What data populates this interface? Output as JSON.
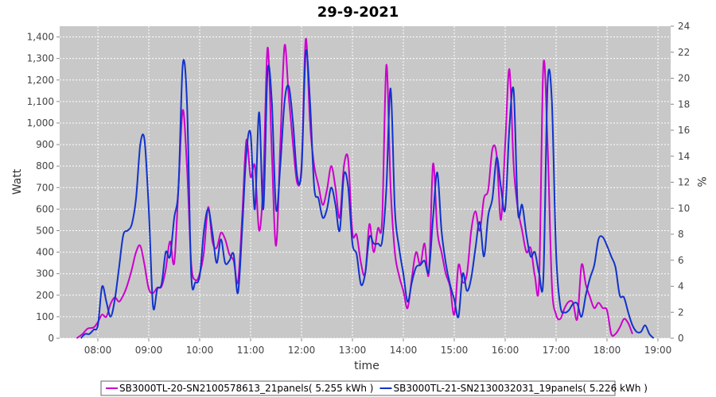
{
  "chart_data": {
    "type": "line",
    "title": "29-9-2021",
    "xlabel": "time",
    "ylabel": "Watt",
    "y2label": "%",
    "xlim": [
      "07:15",
      "19:15"
    ],
    "ylim": [
      0,
      1450
    ],
    "y2lim": [
      0,
      24
    ],
    "x_ticks": [
      "08:00",
      "09:00",
      "10:00",
      "11:00",
      "12:00",
      "13:00",
      "14:00",
      "15:00",
      "16:00",
      "17:00",
      "18:00",
      "19:00"
    ],
    "y_ticks": [
      "0",
      "100",
      "200",
      "300",
      "400",
      "500",
      "600",
      "700",
      "800",
      "900",
      "1,000",
      "1,100",
      "1,200",
      "1,300",
      "1,400"
    ],
    "y2_ticks": [
      "0",
      "2",
      "4",
      "6",
      "8",
      "10",
      "12",
      "14",
      "16",
      "18",
      "20",
      "22",
      "24"
    ],
    "grid": true,
    "legend_position": "bottom",
    "series": [
      {
        "name": "SB3000TL-20-SN2100578613_21panels( 5.255 kWh )",
        "color": "#cc00cc",
        "points": [
          [
            "07:35",
            0
          ],
          [
            "07:42",
            20
          ],
          [
            "07:48",
            45
          ],
          [
            "07:55",
            50
          ],
          [
            "08:00",
            75
          ],
          [
            "08:05",
            110
          ],
          [
            "08:10",
            100
          ],
          [
            "08:15",
            160
          ],
          [
            "08:20",
            190
          ],
          [
            "08:25",
            170
          ],
          [
            "08:30",
            200
          ],
          [
            "08:35",
            250
          ],
          [
            "08:40",
            320
          ],
          [
            "08:45",
            400
          ],
          [
            "08:50",
            430
          ],
          [
            "08:55",
            340
          ],
          [
            "09:00",
            230
          ],
          [
            "09:05",
            210
          ],
          [
            "09:10",
            235
          ],
          [
            "09:15",
            240
          ],
          [
            "09:20",
            320
          ],
          [
            "09:25",
            450
          ],
          [
            "09:30",
            350
          ],
          [
            "09:35",
            700
          ],
          [
            "09:40",
            1060
          ],
          [
            "09:45",
            800
          ],
          [
            "09:50",
            350
          ],
          [
            "09:55",
            270
          ],
          [
            "10:00",
            300
          ],
          [
            "10:05",
            400
          ],
          [
            "10:10",
            610
          ],
          [
            "10:15",
            450
          ],
          [
            "10:20",
            420
          ],
          [
            "10:25",
            490
          ],
          [
            "10:30",
            460
          ],
          [
            "10:35",
            390
          ],
          [
            "10:40",
            360
          ],
          [
            "10:45",
            260
          ],
          [
            "10:50",
            560
          ],
          [
            "10:55",
            920
          ],
          [
            "11:00",
            750
          ],
          [
            "11:05",
            800
          ],
          [
            "11:10",
            500
          ],
          [
            "11:15",
            730
          ],
          [
            "11:20",
            1350
          ],
          [
            "11:25",
            860
          ],
          [
            "11:30",
            430
          ],
          [
            "11:35",
            900
          ],
          [
            "11:40",
            1360
          ],
          [
            "11:45",
            1120
          ],
          [
            "11:50",
            900
          ],
          [
            "11:55",
            720
          ],
          [
            "12:00",
            800
          ],
          [
            "12:05",
            1390
          ],
          [
            "12:10",
            1000
          ],
          [
            "12:15",
            800
          ],
          [
            "12:20",
            710
          ],
          [
            "12:25",
            620
          ],
          [
            "12:30",
            690
          ],
          [
            "12:35",
            800
          ],
          [
            "12:40",
            700
          ],
          [
            "12:45",
            560
          ],
          [
            "12:50",
            800
          ],
          [
            "12:55",
            830
          ],
          [
            "13:00",
            490
          ],
          [
            "13:05",
            480
          ],
          [
            "13:10",
            350
          ],
          [
            "13:15",
            300
          ],
          [
            "13:20",
            530
          ],
          [
            "13:25",
            400
          ],
          [
            "13:30",
            510
          ],
          [
            "13:35",
            550
          ],
          [
            "13:40",
            1270
          ],
          [
            "13:45",
            700
          ],
          [
            "13:50",
            400
          ],
          [
            "13:55",
            290
          ],
          [
            "14:00",
            220
          ],
          [
            "14:05",
            140
          ],
          [
            "14:10",
            280
          ],
          [
            "14:15",
            400
          ],
          [
            "14:20",
            340
          ],
          [
            "14:25",
            440
          ],
          [
            "14:30",
            300
          ],
          [
            "14:35",
            810
          ],
          [
            "14:40",
            500
          ],
          [
            "14:45",
            400
          ],
          [
            "14:50",
            300
          ],
          [
            "14:55",
            240
          ],
          [
            "15:00",
            110
          ],
          [
            "15:05",
            340
          ],
          [
            "15:10",
            260
          ],
          [
            "15:15",
            300
          ],
          [
            "15:20",
            500
          ],
          [
            "15:25",
            590
          ],
          [
            "15:30",
            500
          ],
          [
            "15:35",
            650
          ],
          [
            "15:40",
            690
          ],
          [
            "15:45",
            880
          ],
          [
            "15:50",
            850
          ],
          [
            "15:55",
            550
          ],
          [
            "16:00",
            900
          ],
          [
            "16:05",
            1250
          ],
          [
            "16:10",
            800
          ],
          [
            "16:15",
            600
          ],
          [
            "16:20",
            500
          ],
          [
            "16:25",
            400
          ],
          [
            "16:30",
            420
          ],
          [
            "16:35",
            290
          ],
          [
            "16:40",
            270
          ],
          [
            "16:45",
            1270
          ],
          [
            "16:50",
            900
          ],
          [
            "16:55",
            250
          ],
          [
            "17:00",
            110
          ],
          [
            "17:05",
            90
          ],
          [
            "17:10",
            140
          ],
          [
            "17:15",
            170
          ],
          [
            "17:20",
            165
          ],
          [
            "17:25",
            90
          ],
          [
            "17:30",
            340
          ],
          [
            "17:35",
            250
          ],
          [
            "17:40",
            190
          ],
          [
            "17:45",
            140
          ],
          [
            "17:50",
            165
          ],
          [
            "17:55",
            140
          ],
          [
            "18:00",
            130
          ],
          [
            "18:05",
            20
          ],
          [
            "18:10",
            20
          ],
          [
            "18:15",
            50
          ],
          [
            "18:20",
            90
          ],
          [
            "18:25",
            70
          ],
          [
            "18:30",
            20
          ]
        ]
      },
      {
        "name": "SB3000TL-21-SN2130032031_19panels( 5.226 kWh )",
        "color": "#1133cc",
        "points": [
          [
            "07:40",
            0
          ],
          [
            "07:45",
            20
          ],
          [
            "07:50",
            20
          ],
          [
            "07:55",
            40
          ],
          [
            "08:00",
            60
          ],
          [
            "08:05",
            240
          ],
          [
            "08:10",
            170
          ],
          [
            "08:15",
            100
          ],
          [
            "08:20",
            180
          ],
          [
            "08:25",
            330
          ],
          [
            "08:30",
            480
          ],
          [
            "08:35",
            500
          ],
          [
            "08:40",
            530
          ],
          [
            "08:45",
            650
          ],
          [
            "08:50",
            900
          ],
          [
            "08:55",
            920
          ],
          [
            "09:00",
            600
          ],
          [
            "09:05",
            150
          ],
          [
            "09:10",
            230
          ],
          [
            "09:15",
            250
          ],
          [
            "09:20",
            400
          ],
          [
            "09:25",
            380
          ],
          [
            "09:30",
            560
          ],
          [
            "09:35",
            700
          ],
          [
            "09:40",
            1270
          ],
          [
            "09:45",
            1100
          ],
          [
            "09:50",
            300
          ],
          [
            "09:55",
            260
          ],
          [
            "10:00",
            290
          ],
          [
            "10:05",
            500
          ],
          [
            "10:10",
            600
          ],
          [
            "10:15",
            490
          ],
          [
            "10:20",
            350
          ],
          [
            "10:25",
            460
          ],
          [
            "10:30",
            350
          ],
          [
            "10:35",
            360
          ],
          [
            "10:40",
            390
          ],
          [
            "10:45",
            210
          ],
          [
            "10:50",
            500
          ],
          [
            "10:55",
            860
          ],
          [
            "11:00",
            950
          ],
          [
            "11:05",
            600
          ],
          [
            "11:10",
            1050
          ],
          [
            "11:15",
            600
          ],
          [
            "11:20",
            1240
          ],
          [
            "11:25",
            1100
          ],
          [
            "11:30",
            600
          ],
          [
            "11:35",
            800
          ],
          [
            "11:40",
            1100
          ],
          [
            "11:45",
            1170
          ],
          [
            "11:50",
            1000
          ],
          [
            "11:55",
            750
          ],
          [
            "12:00",
            780
          ],
          [
            "12:05",
            1330
          ],
          [
            "12:10",
            1100
          ],
          [
            "12:15",
            700
          ],
          [
            "12:20",
            650
          ],
          [
            "12:25",
            560
          ],
          [
            "12:30",
            600
          ],
          [
            "12:35",
            700
          ],
          [
            "12:40",
            620
          ],
          [
            "12:45",
            500
          ],
          [
            "12:50",
            760
          ],
          [
            "12:55",
            700
          ],
          [
            "13:00",
            440
          ],
          [
            "13:05",
            390
          ],
          [
            "13:10",
            250
          ],
          [
            "13:15",
            300
          ],
          [
            "13:20",
            470
          ],
          [
            "13:25",
            440
          ],
          [
            "13:30",
            440
          ],
          [
            "13:35",
            450
          ],
          [
            "13:40",
            700
          ],
          [
            "13:45",
            1160
          ],
          [
            "13:50",
            600
          ],
          [
            "13:55",
            420
          ],
          [
            "14:00",
            300
          ],
          [
            "14:05",
            170
          ],
          [
            "14:10",
            260
          ],
          [
            "14:15",
            330
          ],
          [
            "14:20",
            340
          ],
          [
            "14:25",
            360
          ],
          [
            "14:30",
            310
          ],
          [
            "14:35",
            560
          ],
          [
            "14:40",
            770
          ],
          [
            "14:45",
            500
          ],
          [
            "14:50",
            350
          ],
          [
            "14:55",
            250
          ],
          [
            "15:00",
            180
          ],
          [
            "15:05",
            100
          ],
          [
            "15:10",
            300
          ],
          [
            "15:15",
            220
          ],
          [
            "15:20",
            280
          ],
          [
            "15:25",
            420
          ],
          [
            "15:30",
            540
          ],
          [
            "15:35",
            380
          ],
          [
            "15:40",
            570
          ],
          [
            "15:45",
            650
          ],
          [
            "15:50",
            840
          ],
          [
            "15:55",
            700
          ],
          [
            "16:00",
            600
          ],
          [
            "16:05",
            980
          ],
          [
            "16:10",
            1150
          ],
          [
            "16:15",
            590
          ],
          [
            "16:20",
            620
          ],
          [
            "16:25",
            480
          ],
          [
            "16:30",
            380
          ],
          [
            "16:35",
            400
          ],
          [
            "16:40",
            300
          ],
          [
            "16:45",
            280
          ],
          [
            "16:50",
            1180
          ],
          [
            "16:55",
            1100
          ],
          [
            "17:00",
            400
          ],
          [
            "17:05",
            150
          ],
          [
            "17:10",
            120
          ],
          [
            "17:15",
            130
          ],
          [
            "17:20",
            160
          ],
          [
            "17:25",
            160
          ],
          [
            "17:30",
            100
          ],
          [
            "17:35",
            200
          ],
          [
            "17:40",
            280
          ],
          [
            "17:45",
            340
          ],
          [
            "17:50",
            460
          ],
          [
            "17:55",
            470
          ],
          [
            "18:00",
            430
          ],
          [
            "18:05",
            380
          ],
          [
            "18:10",
            330
          ],
          [
            "18:15",
            200
          ],
          [
            "18:20",
            190
          ],
          [
            "18:25",
            120
          ],
          [
            "18:30",
            60
          ],
          [
            "18:35",
            30
          ],
          [
            "18:40",
            30
          ],
          [
            "18:45",
            60
          ],
          [
            "18:50",
            20
          ],
          [
            "18:55",
            0
          ]
        ]
      }
    ]
  }
}
